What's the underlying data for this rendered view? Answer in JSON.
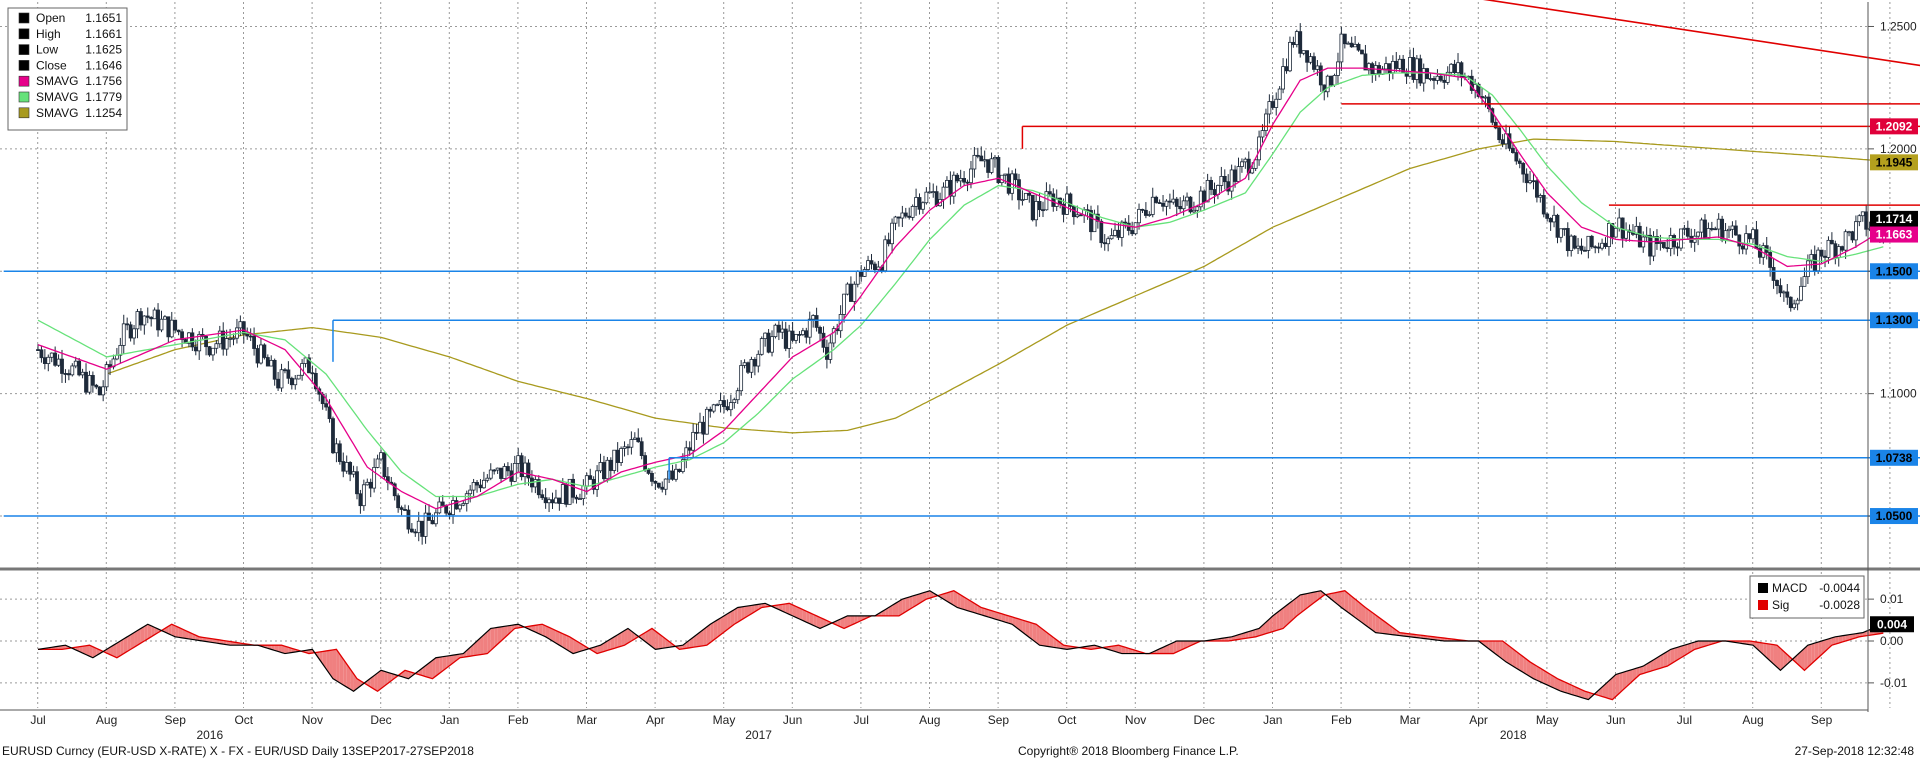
{
  "chart_data": {
    "type": "candlestick",
    "price_axis": {
      "range": [
        1.03,
        1.26
      ],
      "ticks": [
        {
          "v": 1.25,
          "label": "1.2500"
        },
        {
          "v": 1.2,
          "label": "1.2000"
        },
        {
          "v": 1.15,
          "label": "1.1500"
        },
        {
          "v": 1.1,
          "label": "1.1000"
        },
        {
          "v": 1.05,
          "label": "1.0500"
        }
      ]
    },
    "macd_axis": {
      "range": [
        -0.016,
        0.016
      ],
      "ticks": [
        {
          "v": 0.01,
          "label": "0.01"
        },
        {
          "v": 0.0,
          "label": "0.00"
        },
        {
          "v": -0.01,
          "label": "-0.01"
        }
      ]
    },
    "months": [
      "Jul",
      "Aug",
      "Sep",
      "Oct",
      "Nov",
      "Dec",
      "Jan",
      "Feb",
      "Mar",
      "Apr",
      "May",
      "Jun",
      "Jul",
      "Aug",
      "Sep",
      "Oct",
      "Nov",
      "Dec",
      "Jan",
      "Feb",
      "Mar",
      "Apr",
      "May",
      "Jun",
      "Jul",
      "Aug",
      "Sep"
    ],
    "years": [
      {
        "label": "2016",
        "month_index": 3
      },
      {
        "label": "2017",
        "month_index": 11
      },
      {
        "label": "2018",
        "month_index": 22
      }
    ],
    "ohlc_legend": [
      {
        "name": "Open",
        "value": "1.1651",
        "color": "#000000"
      },
      {
        "name": "High",
        "value": "1.1661",
        "color": "#000000"
      },
      {
        "name": "Low",
        "value": "1.1625",
        "color": "#000000"
      },
      {
        "name": "Close",
        "value": "1.1646",
        "color": "#000000"
      },
      {
        "name": "SMAVG",
        "value": "1.1756",
        "color": "#e6008a"
      },
      {
        "name": "SMAVG",
        "value": "1.1779",
        "color": "#66e27a"
      },
      {
        "name": "SMAVG",
        "value": "1.1254",
        "color": "#a89a1e"
      }
    ],
    "macd_legend": [
      {
        "name": "MACD",
        "value": "-0.0044",
        "color": "#000000"
      },
      {
        "name": "Sig",
        "value": "-0.0028",
        "color": "#e00000"
      }
    ],
    "price_anchors": [
      [
        0,
        1.118
      ],
      [
        0.4,
        1.112
      ],
      [
        0.9,
        1.1
      ],
      [
        1.2,
        1.122
      ],
      [
        1.5,
        1.133
      ],
      [
        2.0,
        1.126
      ],
      [
        2.5,
        1.12
      ],
      [
        3.0,
        1.125
      ],
      [
        3.5,
        1.105
      ],
      [
        4.0,
        1.112
      ],
      [
        4.3,
        1.08
      ],
      [
        4.7,
        1.058
      ],
      [
        5.0,
        1.072
      ],
      [
        5.3,
        1.052
      ],
      [
        5.6,
        1.045
      ],
      [
        6.0,
        1.055
      ],
      [
        6.5,
        1.065
      ],
      [
        7.0,
        1.07
      ],
      [
        7.5,
        1.058
      ],
      [
        8.0,
        1.062
      ],
      [
        8.5,
        1.075
      ],
      [
        8.7,
        1.08
      ],
      [
        9.0,
        1.065
      ],
      [
        9.3,
        1.065
      ],
      [
        9.6,
        1.085
      ],
      [
        10.0,
        1.095
      ],
      [
        10.4,
        1.115
      ],
      [
        10.8,
        1.125
      ],
      [
        11.0,
        1.12
      ],
      [
        11.3,
        1.13
      ],
      [
        11.5,
        1.118
      ],
      [
        11.8,
        1.14
      ],
      [
        12.0,
        1.15
      ],
      [
        12.3,
        1.155
      ],
      [
        12.5,
        1.168
      ],
      [
        12.8,
        1.18
      ],
      [
        13.2,
        1.182
      ],
      [
        13.5,
        1.19
      ],
      [
        13.8,
        1.196
      ],
      [
        14.2,
        1.185
      ],
      [
        14.5,
        1.175
      ],
      [
        14.8,
        1.18
      ],
      [
        15.2,
        1.175
      ],
      [
        15.6,
        1.162
      ],
      [
        16.0,
        1.17
      ],
      [
        16.3,
        1.182
      ],
      [
        16.6,
        1.175
      ],
      [
        17.0,
        1.182
      ],
      [
        17.5,
        1.19
      ],
      [
        17.8,
        1.2
      ],
      [
        18.0,
        1.22
      ],
      [
        18.3,
        1.245
      ],
      [
        18.5,
        1.24
      ],
      [
        18.8,
        1.225
      ],
      [
        19.0,
        1.242
      ],
      [
        19.5,
        1.232
      ],
      [
        19.9,
        1.235
      ],
      [
        20.3,
        1.23
      ],
      [
        20.7,
        1.232
      ],
      [
        21.0,
        1.225
      ],
      [
        21.3,
        1.205
      ],
      [
        21.7,
        1.19
      ],
      [
        22.0,
        1.175
      ],
      [
        22.4,
        1.158
      ],
      [
        22.7,
        1.16
      ],
      [
        23.0,
        1.17
      ],
      [
        23.5,
        1.16
      ],
      [
        24.0,
        1.165
      ],
      [
        24.5,
        1.168
      ],
      [
        25.0,
        1.162
      ],
      [
        25.3,
        1.15
      ],
      [
        25.5,
        1.135
      ],
      [
        25.8,
        1.15
      ],
      [
        26.0,
        1.158
      ],
      [
        26.3,
        1.162
      ],
      [
        26.6,
        1.17
      ],
      [
        26.9,
        1.166
      ]
    ],
    "sma_fast_anchors": [
      [
        0,
        1.12
      ],
      [
        1.0,
        1.11
      ],
      [
        2.0,
        1.122
      ],
      [
        3.0,
        1.126
      ],
      [
        3.6,
        1.118
      ],
      [
        4.2,
        1.098
      ],
      [
        4.8,
        1.07
      ],
      [
        5.3,
        1.06
      ],
      [
        5.8,
        1.053
      ],
      [
        6.4,
        1.058
      ],
      [
        7.0,
        1.068
      ],
      [
        7.5,
        1.065
      ],
      [
        8.0,
        1.06
      ],
      [
        8.5,
        1.068
      ],
      [
        9.0,
        1.072
      ],
      [
        9.5,
        1.075
      ],
      [
        10.0,
        1.085
      ],
      [
        10.5,
        1.1
      ],
      [
        11.0,
        1.115
      ],
      [
        11.6,
        1.125
      ],
      [
        12.0,
        1.14
      ],
      [
        12.5,
        1.16
      ],
      [
        13.0,
        1.175
      ],
      [
        13.5,
        1.185
      ],
      [
        14.0,
        1.188
      ],
      [
        14.5,
        1.182
      ],
      [
        15.0,
        1.176
      ],
      [
        15.5,
        1.17
      ],
      [
        16.0,
        1.168
      ],
      [
        16.5,
        1.172
      ],
      [
        17.0,
        1.178
      ],
      [
        17.6,
        1.188
      ],
      [
        18.0,
        1.21
      ],
      [
        18.4,
        1.228
      ],
      [
        18.8,
        1.233
      ],
      [
        19.3,
        1.233
      ],
      [
        19.8,
        1.232
      ],
      [
        20.3,
        1.231
      ],
      [
        20.8,
        1.229
      ],
      [
        21.2,
        1.215
      ],
      [
        21.6,
        1.198
      ],
      [
        22.0,
        1.182
      ],
      [
        22.5,
        1.168
      ],
      [
        23.0,
        1.163
      ],
      [
        23.5,
        1.162
      ],
      [
        24.0,
        1.163
      ],
      [
        24.5,
        1.164
      ],
      [
        25.0,
        1.16
      ],
      [
        25.5,
        1.152
      ],
      [
        26.0,
        1.153
      ],
      [
        26.5,
        1.16
      ],
      [
        26.9,
        1.167
      ]
    ],
    "sma_mid_anchors": [
      [
        0,
        1.13
      ],
      [
        1.0,
        1.115
      ],
      [
        2.0,
        1.12
      ],
      [
        3.0,
        1.125
      ],
      [
        3.6,
        1.122
      ],
      [
        4.2,
        1.108
      ],
      [
        4.8,
        1.085
      ],
      [
        5.3,
        1.068
      ],
      [
        5.8,
        1.058
      ],
      [
        6.4,
        1.058
      ],
      [
        7.0,
        1.063
      ],
      [
        7.5,
        1.065
      ],
      [
        8.0,
        1.062
      ],
      [
        8.5,
        1.066
      ],
      [
        9.0,
        1.07
      ],
      [
        9.5,
        1.073
      ],
      [
        10.0,
        1.08
      ],
      [
        10.5,
        1.092
      ],
      [
        11.0,
        1.106
      ],
      [
        11.6,
        1.118
      ],
      [
        12.0,
        1.128
      ],
      [
        12.5,
        1.145
      ],
      [
        13.0,
        1.163
      ],
      [
        13.5,
        1.177
      ],
      [
        14.0,
        1.185
      ],
      [
        14.5,
        1.183
      ],
      [
        15.0,
        1.178
      ],
      [
        15.5,
        1.172
      ],
      [
        16.0,
        1.168
      ],
      [
        16.5,
        1.17
      ],
      [
        17.0,
        1.175
      ],
      [
        17.6,
        1.182
      ],
      [
        18.0,
        1.198
      ],
      [
        18.4,
        1.215
      ],
      [
        18.8,
        1.225
      ],
      [
        19.3,
        1.23
      ],
      [
        19.8,
        1.231
      ],
      [
        20.3,
        1.231
      ],
      [
        20.8,
        1.23
      ],
      [
        21.2,
        1.222
      ],
      [
        21.6,
        1.208
      ],
      [
        22.0,
        1.193
      ],
      [
        22.5,
        1.178
      ],
      [
        23.0,
        1.168
      ],
      [
        23.5,
        1.164
      ],
      [
        24.0,
        1.163
      ],
      [
        24.5,
        1.163
      ],
      [
        25.0,
        1.161
      ],
      [
        25.5,
        1.156
      ],
      [
        26.0,
        1.154
      ],
      [
        26.5,
        1.157
      ],
      [
        26.9,
        1.16
      ]
    ],
    "sma_slow_anchors": [
      [
        1.0,
        1.108
      ],
      [
        2.0,
        1.118
      ],
      [
        3.0,
        1.124
      ],
      [
        4.0,
        1.127
      ],
      [
        5.0,
        1.123
      ],
      [
        6.0,
        1.115
      ],
      [
        7.0,
        1.105
      ],
      [
        8.0,
        1.098
      ],
      [
        9.0,
        1.09
      ],
      [
        10.0,
        1.086
      ],
      [
        11.0,
        1.084
      ],
      [
        11.8,
        1.085
      ],
      [
        12.5,
        1.09
      ],
      [
        13.2,
        1.1
      ],
      [
        14.0,
        1.112
      ],
      [
        15.0,
        1.128
      ],
      [
        16.0,
        1.14
      ],
      [
        17.0,
        1.152
      ],
      [
        18.0,
        1.168
      ],
      [
        19.0,
        1.18
      ],
      [
        20.0,
        1.192
      ],
      [
        21.0,
        1.2
      ],
      [
        21.8,
        1.204
      ],
      [
        23.0,
        1.203
      ],
      [
        24.0,
        1.201
      ],
      [
        25.0,
        1.199
      ],
      [
        26.0,
        1.197
      ],
      [
        26.9,
        1.195
      ]
    ],
    "macd_anchors": [
      [
        0,
        -0.002
      ],
      [
        0.4,
        -0.001
      ],
      [
        0.8,
        -0.004
      ],
      [
        1.2,
        0.0
      ],
      [
        1.6,
        0.004
      ],
      [
        2.0,
        0.001
      ],
      [
        2.4,
        0.0
      ],
      [
        2.8,
        -0.001
      ],
      [
        3.2,
        -0.001
      ],
      [
        3.6,
        -0.003
      ],
      [
        4.0,
        -0.002
      ],
      [
        4.3,
        -0.009
      ],
      [
        4.6,
        -0.012
      ],
      [
        5.0,
        -0.007
      ],
      [
        5.4,
        -0.009
      ],
      [
        5.8,
        -0.004
      ],
      [
        6.2,
        -0.003
      ],
      [
        6.6,
        0.003
      ],
      [
        7.0,
        0.004
      ],
      [
        7.4,
        0.001
      ],
      [
        7.8,
        -0.003
      ],
      [
        8.2,
        -0.001
      ],
      [
        8.6,
        0.003
      ],
      [
        9.0,
        -0.002
      ],
      [
        9.4,
        -0.001
      ],
      [
        9.8,
        0.004
      ],
      [
        10.2,
        0.008
      ],
      [
        10.6,
        0.009
      ],
      [
        11.0,
        0.006
      ],
      [
        11.4,
        0.003
      ],
      [
        11.8,
        0.006
      ],
      [
        12.2,
        0.006
      ],
      [
        12.6,
        0.01
      ],
      [
        13.0,
        0.012
      ],
      [
        13.4,
        0.008
      ],
      [
        13.8,
        0.006
      ],
      [
        14.2,
        0.004
      ],
      [
        14.6,
        -0.001
      ],
      [
        15.0,
        -0.002
      ],
      [
        15.4,
        -0.001
      ],
      [
        15.8,
        -0.003
      ],
      [
        16.2,
        -0.003
      ],
      [
        16.6,
        0.0
      ],
      [
        17.0,
        0.0
      ],
      [
        17.4,
        0.001
      ],
      [
        17.8,
        0.003
      ],
      [
        18.0,
        0.006
      ],
      [
        18.4,
        0.011
      ],
      [
        18.7,
        0.012
      ],
      [
        19.0,
        0.008
      ],
      [
        19.5,
        0.002
      ],
      [
        20.0,
        0.001
      ],
      [
        20.5,
        0.0
      ],
      [
        21.0,
        0.0
      ],
      [
        21.4,
        -0.005
      ],
      [
        21.8,
        -0.009
      ],
      [
        22.2,
        -0.012
      ],
      [
        22.6,
        -0.014
      ],
      [
        23.0,
        -0.008
      ],
      [
        23.4,
        -0.006
      ],
      [
        23.8,
        -0.002
      ],
      [
        24.2,
        0.0
      ],
      [
        24.6,
        0.0
      ],
      [
        25.0,
        -0.001
      ],
      [
        25.4,
        -0.007
      ],
      [
        25.8,
        -0.001
      ],
      [
        26.2,
        0.001
      ],
      [
        26.6,
        0.002
      ],
      [
        26.9,
        0.004
      ]
    ],
    "signal_lag": 0.35,
    "horizontal_lines": [
      {
        "y": 1.2092,
        "color": "#e00000",
        "x_from": 14.35,
        "x_to": 27.45
      },
      {
        "y": 1.2184,
        "color": "#e00000",
        "x_from": 19.0,
        "x_to": 27.45
      },
      {
        "y": 1.177,
        "color": "#e00000",
        "x_from": 22.9,
        "x_to": 27.45
      },
      {
        "y": 1.15,
        "color": "#1a84e8",
        "x_from": -0.5,
        "x_to": 27.45
      },
      {
        "y": 1.13,
        "color": "#1a84e8",
        "x_from": 4.3,
        "x_to": 27.45
      },
      {
        "y": 1.0738,
        "color": "#1a84e8",
        "x_from": 9.2,
        "x_to": 27.45
      },
      {
        "y": 1.05,
        "color": "#1a84e8",
        "x_from": -0.5,
        "x_to": 27.45
      }
    ],
    "vertical_connectors": [
      {
        "x": 4.3,
        "y_from": 1.13,
        "y_to": 1.113,
        "color": "#1a84e8"
      },
      {
        "x": 14.35,
        "y_from": 1.2092,
        "y_to": 1.2,
        "color": "#e00000"
      },
      {
        "x": 9.2,
        "y_from": 1.0738,
        "y_to": 1.065,
        "color": "#1a84e8"
      }
    ],
    "trendline": {
      "x1": 13.1,
      "y1": 1.295,
      "x2": 27.45,
      "y2": 1.234,
      "color": "#e00000"
    },
    "price_tags": [
      {
        "label": "1.2092",
        "y": 1.2092,
        "bg": "#e0003a",
        "fg": "#ffffff"
      },
      {
        "label": "1.1945",
        "y": 1.1945,
        "bg": "#b4a01e",
        "fg": "#000000"
      },
      {
        "label": "1.1714",
        "y": 1.1714,
        "bg": "#000000",
        "fg": "#ffffff"
      },
      {
        "label": "1.1663",
        "y": 1.165,
        "bg": "#e6008a",
        "fg": "#ffffff"
      },
      {
        "label": "1.1500",
        "y": 1.15,
        "bg": "#1a84e8",
        "fg": "#000000"
      },
      {
        "label": "1.1300",
        "y": 1.13,
        "bg": "#1a84e8",
        "fg": "#000000"
      },
      {
        "label": "1.0738",
        "y": 1.0738,
        "bg": "#1a84e8",
        "fg": "#000000"
      },
      {
        "label": "1.0500",
        "y": 1.05,
        "bg": "#1a84e8",
        "fg": "#000000"
      }
    ],
    "macd_tag": {
      "label": "0.004",
      "value": 0.004,
      "bg": "#000000",
      "fg": "#ffffff"
    }
  },
  "colors": {
    "sma_fast": "#e6008a",
    "sma_mid": "#66e27a",
    "sma_slow": "#a89a1e",
    "candle_up": "#ffffff",
    "candle_down": "#1e2a3a",
    "macd": "#000000",
    "signal": "#e00000",
    "macd_fill": "#f08080"
  },
  "footer": {
    "left": "EURUSD Curncy (EUR-USD X-RATE) X - FX - EUR/USD  Daily 13SEP2017-27SEP2018",
    "center": "Copyright® 2018 Bloomberg Finance L.P.",
    "right": "27-Sep-2018 12:32:48"
  }
}
